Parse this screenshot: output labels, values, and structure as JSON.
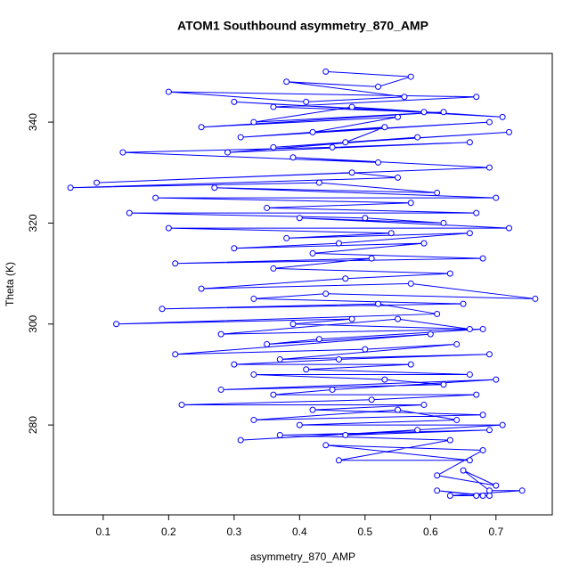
{
  "chart_data": {
    "type": "line",
    "marker": "circle",
    "title": "ATOM1 Southbound asymmetry_870_AMP",
    "x_label": "asymmetry_870_AMP",
    "y_label": "Theta (K)",
    "x": [
      0.44,
      0.57,
      0.52,
      0.38,
      0.56,
      0.41,
      0.2,
      0.67,
      0.36,
      0.59,
      0.3,
      0.71,
      0.48,
      0.33,
      0.62,
      0.25,
      0.55,
      0.42,
      0.69,
      0.31,
      0.53,
      0.47,
      0.72,
      0.36,
      0.58,
      0.29,
      0.66,
      0.45,
      0.13,
      0.52,
      0.39,
      0.69,
      0.09,
      0.48,
      0.55,
      0.05,
      0.43,
      0.61,
      0.27,
      0.7,
      0.18,
      0.57,
      0.35,
      0.67,
      0.14,
      0.5,
      0.62,
      0.4,
      0.72,
      0.2,
      0.54,
      0.38,
      0.66,
      0.46,
      0.3,
      0.59,
      0.42,
      0.68,
      0.21,
      0.51,
      0.36,
      0.63,
      0.47,
      0.25,
      0.57,
      0.76,
      0.44,
      0.33,
      0.65,
      0.19,
      0.52,
      0.61,
      0.12,
      0.48,
      0.39,
      0.66,
      0.55,
      0.28,
      0.68,
      0.43,
      0.35,
      0.6,
      0.21,
      0.5,
      0.64,
      0.37,
      0.69,
      0.46,
      0.3,
      0.57,
      0.41,
      0.66,
      0.33,
      0.53,
      0.62,
      0.28,
      0.7,
      0.45,
      0.36,
      0.67,
      0.51,
      0.22,
      0.59,
      0.42,
      0.68,
      0.33,
      0.55,
      0.64,
      0.4,
      0.71,
      0.31,
      0.58,
      0.47,
      0.69,
      0.37,
      0.63,
      0.46,
      0.66,
      0.44,
      0.68,
      0.61,
      0.7,
      0.65,
      0.69,
      0.74,
      0.63,
      0.68,
      0.61,
      0.69,
      0.67
    ],
    "series": [
      {
        "color": "#0000ff",
        "values": [
          350,
          349,
          347,
          348,
          345,
          344,
          346,
          345,
          343,
          342,
          344,
          341,
          343,
          340,
          342,
          339,
          341,
          338,
          340,
          337,
          339,
          336,
          338,
          335,
          337,
          334,
          336,
          335,
          334,
          332,
          333,
          331,
          328,
          330,
          329,
          327,
          328,
          326,
          327,
          325,
          325,
          324,
          323,
          322,
          322,
          321,
          320,
          321,
          319,
          319,
          318,
          317,
          318,
          316,
          315,
          316,
          314,
          313,
          312,
          313,
          311,
          310,
          309,
          307,
          308,
          305,
          306,
          305,
          304,
          303,
          304,
          302,
          300,
          301,
          300,
          299,
          301,
          298,
          299,
          297,
          296,
          298,
          294,
          295,
          296,
          293,
          294,
          293,
          292,
          292,
          291,
          290,
          290,
          289,
          288,
          287,
          289,
          287,
          286,
          286,
          285,
          284,
          284,
          283,
          282,
          281,
          283,
          281,
          280,
          280,
          277,
          279,
          278,
          279,
          278,
          277,
          273,
          273,
          276,
          275,
          270,
          268,
          271,
          267,
          267,
          266,
          266,
          267,
          266,
          266
        ]
      }
    ],
    "xlim": [
      0.024,
      0.786
    ],
    "ylim": [
      262.2,
      353.6
    ],
    "xticks": [
      0.1,
      0.2,
      0.3,
      0.4,
      0.5,
      0.6,
      0.7
    ],
    "yticks": [
      280,
      300,
      320,
      340
    ]
  }
}
